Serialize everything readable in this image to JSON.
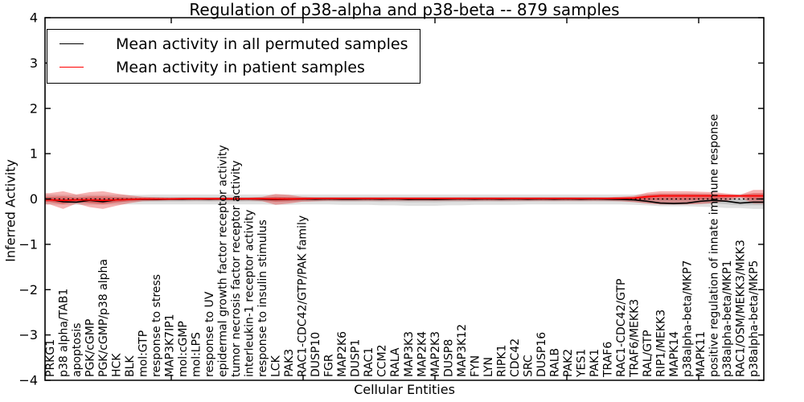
{
  "chart_data": {
    "type": "line",
    "title": "Regulation of p38-alpha and p38-beta -- 879 samples",
    "xlabel": "Cellular Entities",
    "ylabel": "Inferred Activity",
    "ylim": [
      -4,
      4
    ],
    "yticks": [
      -4,
      -3,
      -2,
      -1,
      0,
      1,
      2,
      3,
      4
    ],
    "grid": false,
    "legend_position": "upper left",
    "zero_reference_line": "black dotted line at y=0",
    "background_color": "#ffffff",
    "categories": [
      "PRKG1",
      "p38 alpha/TAB1",
      "apoptosis",
      "PGK/cGMP",
      "PGK/cGMP/p38 alpha",
      "HCK",
      "BLK",
      "mol:GTP",
      "response to stress",
      "MAP3K7IP1",
      "mol:cGMP",
      "mol:LPS",
      "response to UV",
      "epidermal growth factor receptor activity",
      "tumor necrosis factor receptor activity",
      "interleukin-1 receptor activity",
      "response to insulin stimulus",
      "LCK",
      "PAK3",
      "RAC1-CDC42/GTP/PAK family",
      "DUSP10",
      "FGR",
      "MAP2K6",
      "DUSP1",
      "RAC1",
      "CCM2",
      "RALA",
      "MAP3K3",
      "MAP2K4",
      "MAP2K3",
      "DUSP8",
      "MAP3K12",
      "FYN",
      "LYN",
      "RIPK1",
      "CDC42",
      "SRC",
      "DUSP16",
      "RALB",
      "PAK2",
      "YES1",
      "PAK1",
      "TRAF6",
      "RAC1-CDC42/GTP",
      "TRAF6/MEKK3",
      "RAL/GTP",
      "RIP1/MEKK3",
      "MAPK14",
      "p38alpha-beta/MKP7",
      "MAPK11",
      "positive regulation of innate immune response",
      "p38alpha-beta/MKP1",
      "RAC1/OSM/MEKK3/MKK3",
      "p38alpha-beta/MKP5"
    ],
    "series": [
      {
        "name": "Mean activity in all permuted samples",
        "color": "#000000",
        "band_color": "rgba(0,0,0,0.12)",
        "values": [
          -0.01,
          -0.06,
          -0.07,
          -0.03,
          -0.06,
          -0.02,
          -0.01,
          -0.005,
          -0.01,
          -0.005,
          -0.005,
          0,
          -0.005,
          0,
          -0.005,
          0,
          -0.005,
          -0.01,
          -0.005,
          0,
          -0.005,
          0,
          -0.005,
          -0.005,
          0,
          -0.005,
          0,
          -0.01,
          -0.005,
          -0.01,
          -0.005,
          0,
          -0.005,
          0,
          -0.005,
          0,
          -0.005,
          0,
          -0.005,
          0,
          -0.005,
          0,
          -0.005,
          -0.01,
          -0.02,
          -0.05,
          -0.09,
          -0.1,
          -0.09,
          -0.05,
          -0.03,
          -0.05,
          -0.09,
          -0.07
        ],
        "band_hi": [
          0.1,
          0.09,
          0.09,
          0.09,
          0.09,
          0.09,
          0.09,
          0.09,
          0.1,
          0.1,
          0.1,
          0.1,
          0.1,
          0.1,
          0.1,
          0.1,
          0.1,
          0.1,
          0.1,
          0.1,
          0.1,
          0.1,
          0.1,
          0.1,
          0.1,
          0.1,
          0.1,
          0.1,
          0.1,
          0.1,
          0.1,
          0.1,
          0.1,
          0.1,
          0.1,
          0.1,
          0.1,
          0.1,
          0.1,
          0.1,
          0.1,
          0.1,
          0.1,
          0.1,
          0.1,
          0.11,
          0.12,
          0.12,
          0.12,
          0.12,
          0.11,
          0.1,
          0.11,
          0.12
        ],
        "band_lo": [
          -0.12,
          -0.13,
          -0.13,
          -0.13,
          -0.13,
          -0.12,
          -0.12,
          -0.12,
          -0.12,
          -0.12,
          -0.12,
          -0.12,
          -0.12,
          -0.12,
          -0.12,
          -0.12,
          -0.12,
          -0.13,
          -0.13,
          -0.12,
          -0.12,
          -0.12,
          -0.13,
          -0.13,
          -0.13,
          -0.14,
          -0.14,
          -0.15,
          -0.15,
          -0.15,
          -0.14,
          -0.14,
          -0.13,
          -0.13,
          -0.13,
          -0.13,
          -0.12,
          -0.12,
          -0.12,
          -0.12,
          -0.12,
          -0.12,
          -0.12,
          -0.12,
          -0.13,
          -0.14,
          -0.16,
          -0.16,
          -0.16,
          -0.17,
          -0.18,
          -0.2,
          -0.2,
          -0.22
        ]
      },
      {
        "name": "Mean activity in patient samples",
        "color": "#ff0000",
        "band_color": "rgba(225,25,25,0.34)",
        "values": [
          -0.02,
          -0.03,
          -0.02,
          -0.02,
          -0.03,
          -0.02,
          -0.01,
          0,
          0,
          0,
          0.005,
          0.005,
          0.005,
          0.005,
          0.005,
          0.005,
          0.005,
          0,
          0,
          0.005,
          0.01,
          0.01,
          0.01,
          0.01,
          0.01,
          0.01,
          0.01,
          0.01,
          0.01,
          0.01,
          0.01,
          0.01,
          0.01,
          0.01,
          0.01,
          0.01,
          0.01,
          0.01,
          0.01,
          0.01,
          0.01,
          0.01,
          0.01,
          0.015,
          0.02,
          0.05,
          0.07,
          0.07,
          0.07,
          0.07,
          0.07,
          0.07,
          0.07,
          0.07
        ],
        "band_hi": [
          0.13,
          0.17,
          0.1,
          0.15,
          0.17,
          0.12,
          0.08,
          0.05,
          0.04,
          0.03,
          0.03,
          0.03,
          0.03,
          0.03,
          0.03,
          0.03,
          0.05,
          0.11,
          0.09,
          0.05,
          0.04,
          0.04,
          0.04,
          0.04,
          0.04,
          0.04,
          0.04,
          0.04,
          0.04,
          0.04,
          0.04,
          0.04,
          0.04,
          0.04,
          0.04,
          0.04,
          0.04,
          0.04,
          0.04,
          0.04,
          0.04,
          0.04,
          0.04,
          0.05,
          0.07,
          0.14,
          0.17,
          0.17,
          0.17,
          0.16,
          0.15,
          0.12,
          0.09,
          0.2
        ],
        "band_lo": [
          -0.12,
          -0.22,
          -0.1,
          -0.18,
          -0.22,
          -0.15,
          -0.09,
          -0.05,
          -0.04,
          -0.03,
          -0.03,
          -0.03,
          -0.03,
          -0.03,
          -0.03,
          -0.03,
          -0.05,
          -0.13,
          -0.1,
          -0.06,
          -0.05,
          -0.04,
          -0.04,
          -0.04,
          -0.04,
          -0.04,
          -0.04,
          -0.04,
          -0.04,
          -0.04,
          -0.04,
          -0.04,
          -0.04,
          -0.04,
          -0.04,
          -0.04,
          -0.04,
          -0.04,
          -0.04,
          -0.04,
          -0.04,
          -0.04,
          -0.04,
          -0.05,
          -0.07,
          -0.1,
          -0.12,
          -0.12,
          -0.12,
          -0.11,
          -0.09,
          -0.04,
          0.03,
          -0.1
        ]
      }
    ]
  }
}
